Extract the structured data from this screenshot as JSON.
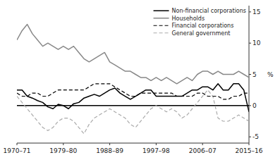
{
  "chart_data": {
    "type": "line",
    "x": [
      1970,
      1971,
      1972,
      1973,
      1974,
      1975,
      1976,
      1977,
      1978,
      1979,
      1980,
      1981,
      1982,
      1983,
      1984,
      1985,
      1986,
      1987,
      1988,
      1989,
      1990,
      1991,
      1992,
      1993,
      1994,
      1995,
      1996,
      1997,
      1998,
      1999,
      2000,
      2001,
      2002,
      2003,
      2004,
      2005,
      2006,
      2007,
      2008,
      2009,
      2010,
      2011,
      2012,
      2013,
      2014,
      2015
    ],
    "series": [
      {
        "name": "Non-financial corporations",
        "color": "#000000",
        "line_style": "solid",
        "values": [
          2.5,
          2.5,
          1.5,
          1.2,
          0.8,
          0.5,
          -0.2,
          -0.5,
          0.2,
          0.0,
          -0.5,
          0.3,
          0.5,
          1.2,
          1.5,
          1.8,
          1.5,
          2.0,
          2.5,
          2.8,
          2.0,
          1.5,
          1.0,
          1.5,
          2.0,
          2.5,
          2.5,
          1.5,
          1.5,
          1.5,
          1.5,
          1.5,
          1.5,
          2.0,
          2.5,
          2.5,
          3.0,
          3.0,
          2.5,
          3.5,
          2.5,
          2.5,
          3.5,
          3.5,
          2.5,
          -1.0
        ]
      },
      {
        "name": "Households",
        "color": "#888888",
        "line_style": "solid",
        "values": [
          10.5,
          12.0,
          13.0,
          11.5,
          10.5,
          9.5,
          10.0,
          9.5,
          9.0,
          9.5,
          9.0,
          9.5,
          8.5,
          7.5,
          7.0,
          7.5,
          8.0,
          8.5,
          7.0,
          6.5,
          6.0,
          5.5,
          5.5,
          5.0,
          4.5,
          4.5,
          4.0,
          4.5,
          4.0,
          4.5,
          4.0,
          3.5,
          4.0,
          4.5,
          4.0,
          5.0,
          5.5,
          5.5,
          5.0,
          5.5,
          5.0,
          5.0,
          5.0,
          5.5,
          5.0,
          4.5
        ]
      },
      {
        "name": "Financial corporations",
        "color": "#000000",
        "line_style": "dashed",
        "values": [
          2.0,
          1.5,
          1.5,
          2.0,
          2.0,
          1.5,
          1.5,
          2.0,
          2.5,
          2.5,
          2.5,
          2.5,
          2.5,
          2.5,
          3.0,
          3.5,
          3.5,
          3.5,
          3.5,
          3.0,
          2.5,
          2.0,
          1.5,
          1.5,
          2.0,
          2.0,
          2.0,
          2.0,
          2.0,
          2.0,
          2.0,
          1.5,
          1.5,
          1.5,
          1.5,
          2.0,
          2.0,
          1.5,
          1.5,
          1.5,
          1.0,
          1.0,
          1.5,
          1.5,
          2.0,
          2.0
        ]
      },
      {
        "name": "General government",
        "color": "#aaaaaa",
        "line_style": "dashed",
        "values": [
          1.5,
          0.5,
          -0.5,
          -1.5,
          -2.5,
          -3.5,
          -4.0,
          -3.5,
          -2.5,
          -2.0,
          -2.0,
          -2.5,
          -3.5,
          -4.5,
          -3.0,
          -2.0,
          -1.5,
          -1.0,
          -0.5,
          -1.0,
          -1.5,
          -2.0,
          -3.0,
          -3.5,
          -2.5,
          -1.5,
          -0.5,
          0.0,
          -0.5,
          -1.0,
          -0.5,
          -1.0,
          -2.0,
          -1.5,
          -0.5,
          0.5,
          1.5,
          2.5,
          1.5,
          -2.0,
          -2.5,
          -2.5,
          -2.0,
          -1.5,
          -2.0,
          -2.5
        ]
      }
    ],
    "xlim": [
      1970,
      2015
    ],
    "xticks": [
      {
        "value": 1970,
        "label": "1970–71"
      },
      {
        "value": 1979,
        "label": "1979–80"
      },
      {
        "value": 1988,
        "label": "1988–89"
      },
      {
        "value": 1997,
        "label": "1997–98"
      },
      {
        "value": 2006,
        "label": "2006–07"
      },
      {
        "value": 2015,
        "label": "2015–16"
      }
    ],
    "ylim": [
      -6,
      16
    ],
    "yticks": [
      -5,
      0,
      5,
      10,
      15
    ],
    "y_label": "%",
    "grid": false,
    "legend": "upper right"
  }
}
